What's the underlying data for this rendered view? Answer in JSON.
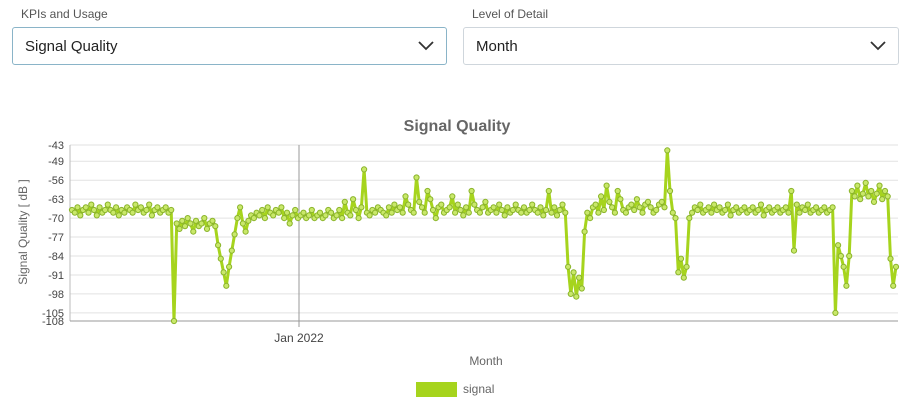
{
  "filters": {
    "kpi": {
      "label": "KPIs and Usage",
      "value": "Signal Quality"
    },
    "detail": {
      "label": "Level of Detail",
      "value": "Month"
    }
  },
  "chart_data": {
    "type": "line",
    "title": "Signal Quality",
    "xlabel": "Month",
    "ylabel": "Signal Quality [ dB ]",
    "y_ticks": [
      -43,
      -49,
      -56,
      -63,
      -70,
      -77,
      -84,
      -91,
      -98,
      -105,
      -108
    ],
    "ylim": [
      -108,
      -43
    ],
    "x_ticks": [
      "Jan 2022"
    ],
    "grid": true,
    "legend_position": "bottom-center",
    "colors": {
      "series": "#a6d41d",
      "point_stroke": "#8ab42a",
      "grid": "#e2e2e2"
    },
    "series": [
      {
        "name": "signal",
        "values": [
          -67,
          -68,
          -66,
          -69,
          -67,
          -66,
          -68,
          -65,
          -67,
          -69,
          -66,
          -68,
          -67,
          -65,
          -67,
          -68,
          -66,
          -69,
          -67,
          -68,
          -66,
          -67,
          -68,
          -65,
          -67,
          -66,
          -68,
          -67,
          -65,
          -69,
          -67,
          -66,
          -68,
          -67,
          -66,
          -68,
          -67,
          -108,
          -72,
          -74,
          -71,
          -73,
          -70,
          -72,
          -75,
          -71,
          -73,
          -72,
          -70,
          -74,
          -72,
          -71,
          -73,
          -80,
          -85,
          -90,
          -95,
          -88,
          -82,
          -76,
          -70,
          -66,
          -72,
          -75,
          -71,
          -69,
          -70,
          -68,
          -69,
          -67,
          -70,
          -66,
          -68,
          -69,
          -67,
          -68,
          -66,
          -70,
          -68,
          -72,
          -69,
          -67,
          -70,
          -69,
          -68,
          -70,
          -69,
          -67,
          -70,
          -69,
          -68,
          -70,
          -69,
          -67,
          -68,
          -70,
          -69,
          -67,
          -70,
          -64,
          -68,
          -69,
          -63,
          -67,
          -70,
          -66,
          -52,
          -68,
          -69,
          -67,
          -68,
          -66,
          -67,
          -68,
          -69,
          -66,
          -68,
          -65,
          -67,
          -66,
          -68,
          -62,
          -65,
          -67,
          -68,
          -55,
          -64,
          -66,
          -68,
          -60,
          -63,
          -67,
          -70,
          -66,
          -65,
          -68,
          -67,
          -66,
          -62,
          -68,
          -65,
          -67,
          -69,
          -66,
          -68,
          -60,
          -65,
          -67,
          -68,
          -66,
          -64,
          -68,
          -67,
          -66,
          -68,
          -65,
          -67,
          -69,
          -66,
          -68,
          -67,
          -65,
          -67,
          -68,
          -66,
          -68,
          -67,
          -65,
          -67,
          -68,
          -66,
          -69,
          -67,
          -60,
          -68,
          -66,
          -69,
          -67,
          -65,
          -68,
          -88,
          -98,
          -90,
          -99,
          -92,
          -96,
          -75,
          -68,
          -70,
          -66,
          -65,
          -68,
          -62,
          -67,
          -58,
          -64,
          -66,
          -68,
          -60,
          -63,
          -67,
          -68,
          -66,
          -65,
          -67,
          -63,
          -66,
          -68,
          -65,
          -64,
          -66,
          -68,
          -67,
          -65,
          -64,
          -66,
          -45,
          -60,
          -68,
          -70,
          -90,
          -85,
          -92,
          -88,
          -70,
          -68,
          -66,
          -67,
          -65,
          -68,
          -67,
          -66,
          -68,
          -65,
          -67,
          -66,
          -68,
          -67,
          -65,
          -69,
          -67,
          -66,
          -68,
          -67,
          -66,
          -68,
          -67,
          -66,
          -68,
          -67,
          -65,
          -69,
          -67,
          -66,
          -68,
          -67,
          -66,
          -68,
          -67,
          -66,
          -68,
          -60,
          -82,
          -65,
          -68,
          -66,
          -67,
          -65,
          -68,
          -67,
          -66,
          -68,
          -67,
          -66,
          -68,
          -67,
          -66,
          -105,
          -80,
          -84,
          -88,
          -95,
          -84,
          -60,
          -62,
          -58,
          -63,
          -61,
          -57,
          -62,
          -60,
          -64,
          -61,
          -58,
          -63,
          -60,
          -62,
          -85,
          -95,
          -88
        ]
      }
    ]
  }
}
